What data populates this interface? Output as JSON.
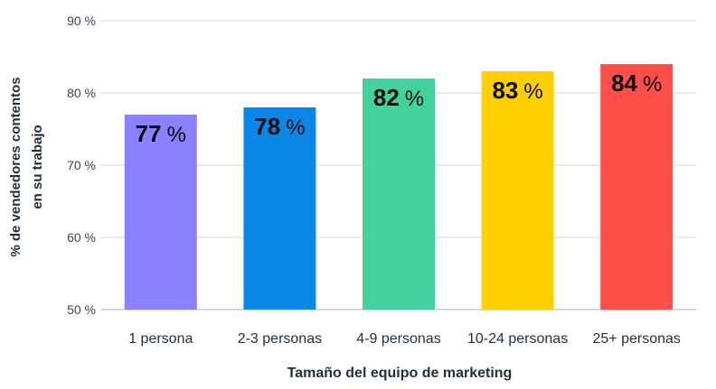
{
  "chart_data": {
    "type": "bar",
    "categories": [
      "1 persona",
      "2-3 personas",
      "4-9 personas",
      "10-24 personas",
      "25+ personas"
    ],
    "values": [
      77,
      78,
      82,
      83,
      84
    ],
    "data_labels": [
      {
        "number": "77",
        "unit": "%"
      },
      {
        "number": "78",
        "unit": "%"
      },
      {
        "number": "82",
        "unit": "%"
      },
      {
        "number": "83",
        "unit": "%"
      },
      {
        "number": "84",
        "unit": "%"
      }
    ],
    "colors": [
      "#8b80ff",
      "#0a87e6",
      "#43d19e",
      "#ffcf00",
      "#ff4f4a"
    ],
    "xlabel": "Tamaño del equipo de marketing",
    "ylabel_lines": [
      "% de vendedores contentos",
      "en su trabajo"
    ],
    "ylim": [
      50,
      90
    ],
    "yticks": [
      50,
      60,
      70,
      80,
      90
    ],
    "ytick_labels": [
      "50 %",
      "60 %",
      "70 %",
      "80 %",
      "90 %"
    ],
    "grid": true,
    "legend": "none"
  }
}
